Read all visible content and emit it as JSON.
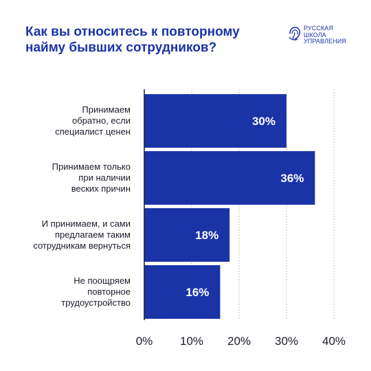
{
  "header": {
    "title": "Как вы относитесь к повторному найму бывших сотрудников?"
  },
  "brand": {
    "lines": [
      "РУССКАЯ",
      "ШКОЛА",
      "УПРАВЛЕНИЯ"
    ],
    "icon": "rsu-logo-icon"
  },
  "colors": {
    "bar": "#1a34a8",
    "title": "#1a34a8",
    "text": "#1b1b2b",
    "grid": "#bfbfbf",
    "axis": "#1b1b2b"
  },
  "chart_data": {
    "type": "bar",
    "orientation": "horizontal",
    "title": "Как вы относитесь к повторному найму бывших сотрудников?",
    "categories": [
      [
        "Принимаем",
        "обратно, если",
        "специалист ценен"
      ],
      [
        "Принимаем только",
        "при наличии",
        "веских причин"
      ],
      [
        "И принимаем, и сами",
        "предлагаем таким",
        "сотрудникам вернуться"
      ],
      [
        "Не поощряем",
        "повторное",
        "трудоустройство"
      ]
    ],
    "values": [
      30,
      36,
      18,
      16
    ],
    "value_labels": [
      "30%",
      "36%",
      "18%",
      "16%"
    ],
    "xlim": [
      0,
      40
    ],
    "xticks": [
      0,
      10,
      20,
      30,
      40
    ],
    "xtick_labels": [
      "0%",
      "10%",
      "20%",
      "30%",
      "40%"
    ],
    "grid": "vertical dashed",
    "legend": "none"
  }
}
